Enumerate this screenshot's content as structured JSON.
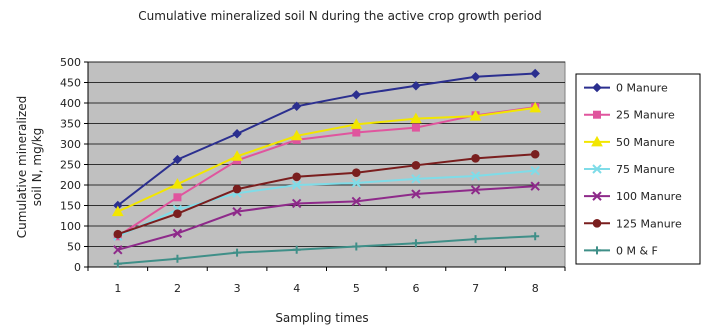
{
  "chart_data": {
    "type": "line",
    "title": "Cumulative mineralized soil N during the active crop growth period",
    "xlabel": "Sampling times",
    "ylabel_line1": "Cumulative mineralized",
    "ylabel_line2": "soil N, mg/kg",
    "x": [
      1,
      2,
      3,
      4,
      5,
      6,
      7,
      8
    ],
    "ylim": [
      0,
      500
    ],
    "yticks": [
      0,
      50,
      100,
      150,
      200,
      250,
      300,
      350,
      400,
      450,
      500
    ],
    "grid": "horizontal",
    "legend_position": "right",
    "series": [
      {
        "name": "0 Manure",
        "color": "#2b2f8f",
        "marker": "diamond",
        "values": [
          150,
          262,
          325,
          392,
          420,
          442,
          464,
          472
        ]
      },
      {
        "name": "25 Manure",
        "color": "#e0559e",
        "marker": "square",
        "values": [
          75,
          170,
          260,
          310,
          328,
          340,
          370,
          390
        ]
      },
      {
        "name": "50 Manure",
        "color": "#f2e600",
        "marker": "triangle",
        "values": [
          135,
          202,
          270,
          320,
          348,
          362,
          368,
          388
        ]
      },
      {
        "name": "75 Manure",
        "color": "#7fdce8",
        "marker": "x",
        "values": [
          75,
          140,
          180,
          200,
          205,
          215,
          222,
          235
        ]
      },
      {
        "name": "100 Manure",
        "color": "#8e2a8a",
        "marker": "x",
        "values": [
          42,
          82,
          135,
          155,
          160,
          178,
          188,
          197
        ]
      },
      {
        "name": "125 Manure",
        "color": "#7a1e1e",
        "marker": "circle",
        "values": [
          80,
          130,
          190,
          220,
          230,
          248,
          265,
          275
        ]
      },
      {
        "name": "0 M & F",
        "color": "#3f8f88",
        "marker": "plus",
        "values": [
          8,
          20,
          35,
          42,
          50,
          58,
          68,
          75
        ]
      }
    ]
  }
}
